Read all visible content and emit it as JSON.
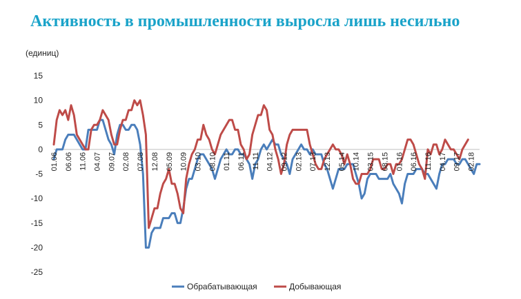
{
  "chart_data": {
    "type": "line",
    "title": "Активность в промышленности выросла лишь несильно",
    "ylabel": "(единиц)",
    "ylim": [
      -25,
      15
    ],
    "yticks": [
      15,
      10,
      5,
      0,
      -5,
      -10,
      -15,
      -20,
      -25
    ],
    "x_tick_labels": [
      "01.06",
      "06.06",
      "11.06",
      "04.07",
      "09.07",
      "02.08",
      "07.08",
      "12.08",
      "05.09",
      "10.09",
      "03.10",
      "08.10",
      "01.11",
      "06.11",
      "11.11",
      "04.12",
      "09.12",
      "02.13",
      "07.13",
      "12.13",
      "05.14",
      "10.14",
      "03.15",
      "08.15",
      "01.16",
      "06.16",
      "11.16",
      "04.17",
      "09.17",
      "02.18"
    ],
    "legend_position": "bottom",
    "series": [
      {
        "name": "Обрабатывающая",
        "color": "#4a7ebb",
        "values": [
          -2,
          0,
          0,
          0,
          2,
          3,
          3,
          3,
          2,
          1,
          0,
          0,
          4,
          4,
          4,
          4,
          6,
          6,
          4,
          2,
          1,
          -1,
          3,
          5,
          5,
          4,
          4,
          5,
          5,
          4,
          1,
          -5,
          -20,
          -20,
          -17,
          -16,
          -16,
          -16,
          -14,
          -14,
          -14,
          -13,
          -13,
          -15,
          -15,
          -12,
          -8,
          -6,
          -6,
          -4,
          -2,
          -1,
          -1,
          -2,
          -3,
          -4,
          -6,
          -4,
          -2,
          -1,
          0,
          -1,
          -1,
          0,
          0,
          -1,
          -1,
          -2,
          -3,
          -6,
          -3,
          -2,
          0,
          1,
          0,
          1,
          2,
          1,
          1,
          -1,
          -2,
          -3,
          -5,
          -2,
          -1,
          0,
          1,
          0,
          0,
          -1,
          0,
          -1,
          -1,
          -1,
          -3,
          -4,
          -6,
          -8,
          -6,
          -4,
          -4,
          -4,
          -3,
          -3,
          -3,
          -5,
          -7,
          -10,
          -9,
          -6,
          -5,
          -5,
          -5,
          -6,
          -6,
          -6,
          -6,
          -5,
          -7,
          -8,
          -9,
          -11,
          -7,
          -5,
          -5,
          -5,
          -4,
          -4,
          -4,
          -5,
          -5,
          -6,
          -7,
          -8,
          -5,
          -3,
          -3,
          -2,
          -2,
          -2,
          -3,
          -3,
          -2,
          -2,
          -3,
          -4,
          -5,
          -3,
          -3
        ]
      },
      {
        "name": "Добывающая",
        "color": "#be4b48",
        "values": [
          1,
          6,
          8,
          7,
          8,
          6,
          9,
          7,
          3,
          2,
          1,
          0,
          0,
          4,
          5,
          5,
          6,
          8,
          7,
          6,
          3,
          1,
          1,
          4,
          6,
          6,
          8,
          8,
          10,
          9,
          10,
          7,
          3,
          -16,
          -14,
          -12,
          -12,
          -9,
          -7,
          -6,
          -4,
          -7,
          -7,
          -9,
          -12,
          -13,
          -6,
          -3,
          -1,
          0,
          2,
          2,
          5,
          3,
          2,
          0,
          -1,
          1,
          3,
          4,
          5,
          6,
          6,
          4,
          4,
          1,
          0,
          -2,
          -1,
          3,
          5,
          7,
          7,
          9,
          8,
          4,
          3,
          0,
          -2,
          -5,
          -3,
          1,
          3,
          4,
          4,
          4,
          4,
          4,
          4,
          1,
          -1,
          -3,
          -4,
          -4,
          -2,
          -1,
          0,
          1,
          0,
          0,
          -1,
          -3,
          -1,
          -3,
          -6,
          -7,
          -7,
          -5,
          -5,
          -5,
          -4,
          -2,
          -2,
          -2,
          -4,
          -4,
          -3,
          -3,
          -5,
          -3,
          -3,
          -2,
          0,
          2,
          2,
          1,
          -1,
          -3,
          -4,
          -6,
          0,
          -1,
          1,
          1,
          -1,
          0,
          2,
          1,
          0,
          0,
          -1,
          -2,
          0,
          1,
          2
        ]
      }
    ]
  }
}
